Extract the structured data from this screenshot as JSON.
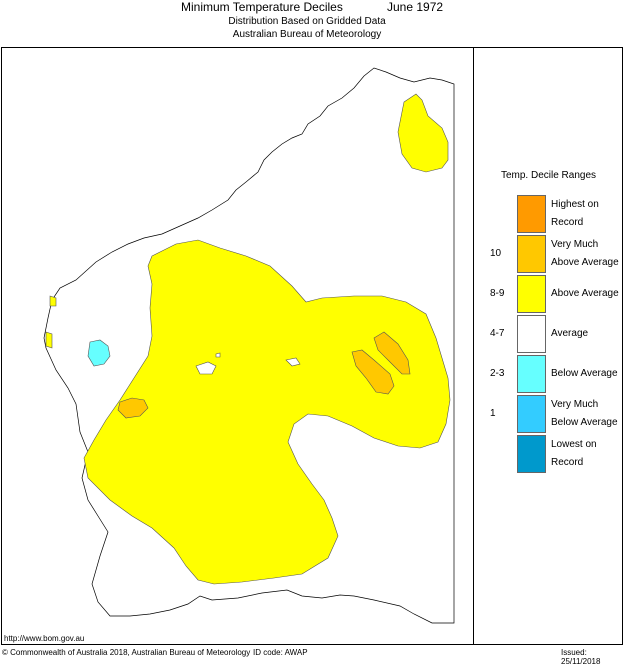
{
  "header": {
    "title": "Minimum Temperature Deciles",
    "period": "June 1972",
    "subtitle1": "Distribution Based on Gridded Data",
    "subtitle2": "Australian Bureau of Meteorology"
  },
  "legend": {
    "title": "Temp. Decile Ranges",
    "items": [
      {
        "range": "",
        "label": "Highest on Record",
        "color": "#ff9a00"
      },
      {
        "range": "10",
        "label": "Very Much Above Average",
        "color": "#ffc800"
      },
      {
        "range": "8-9",
        "label": "Above Average",
        "color": "#ffff00"
      },
      {
        "range": "4-7",
        "label": "Average",
        "color": "#ffffff"
      },
      {
        "range": "2-3",
        "label": "Below Average",
        "color": "#66ffff"
      },
      {
        "range": "1",
        "label": "Very Much Below Average",
        "color": "#33ccff"
      },
      {
        "range": "",
        "label": "Lowest on Record",
        "color": "#0099cc"
      }
    ]
  },
  "footer": {
    "url": "http://www.bom.gov.au",
    "copyright": "© Commonwealth of Australia 2018, Australian Bureau of Meteorology",
    "id_code": "ID code: AWAP",
    "issued": "Issued: 25/11/2018"
  }
}
